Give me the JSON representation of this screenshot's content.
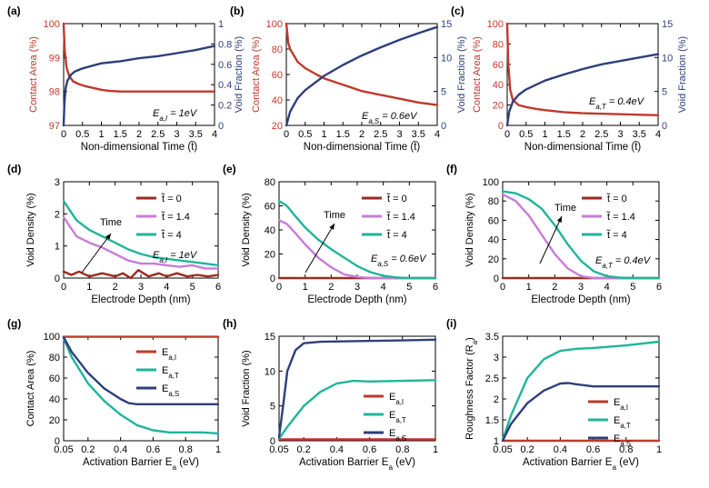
{
  "colors": {
    "red": "#c0392b",
    "navy": "#2e3f7a",
    "teal": "#1fb59a",
    "purple": "#c77dd6",
    "darkred": "#9b2b1f",
    "axis": "#000000"
  },
  "chart_data": [
    {
      "panel": "(a)",
      "type": "line",
      "dual_axis": true,
      "xlabel": "Non-dimensional Time (t̃)",
      "ylabel": "Contact Area (%)",
      "ylabel_right": "Void Fraction (%)",
      "xlim": [
        0,
        4
      ],
      "ylim": [
        97,
        100
      ],
      "ylim_right": [
        0,
        1
      ],
      "xticks": [
        "0",
        "0.5",
        "1",
        "1.5",
        "2",
        "2.5",
        "3",
        "3.5",
        "4"
      ],
      "yticks": [
        "97",
        "98",
        "99",
        "100"
      ],
      "yticks_right": [
        "0",
        "0.2",
        "0.4",
        "0.6",
        "0.8",
        "1"
      ],
      "annotation": "E_{a,I} = 1eV",
      "series": [
        {
          "axis": "left",
          "color": "red",
          "x": [
            0,
            0.03,
            0.08,
            0.15,
            0.25,
            0.4,
            0.6,
            0.8,
            1.0,
            1.2,
            1.5,
            2,
            3,
            4
          ],
          "y": [
            100,
            99.2,
            98.7,
            98.45,
            98.3,
            98.22,
            98.15,
            98.1,
            98.05,
            98.02,
            98.0,
            98.0,
            98.0,
            98.0
          ]
        },
        {
          "axis": "right",
          "color": "navy",
          "x": [
            0,
            0.02,
            0.05,
            0.1,
            0.2,
            0.3,
            0.5,
            0.8,
            1.0,
            1.5,
            2,
            2.5,
            3,
            3.5,
            4
          ],
          "y": [
            0,
            0.2,
            0.36,
            0.44,
            0.5,
            0.53,
            0.56,
            0.59,
            0.61,
            0.63,
            0.66,
            0.68,
            0.71,
            0.74,
            0.78
          ]
        }
      ]
    },
    {
      "panel": "(b)",
      "type": "line",
      "dual_axis": true,
      "xlabel": "Non-dimensional Time (t̃)",
      "ylabel": "Contact Area (%)",
      "ylabel_right": "Void Fraction (%)",
      "xlim": [
        0,
        4
      ],
      "ylim": [
        20,
        100
      ],
      "ylim_right": [
        0,
        15
      ],
      "xticks": [
        "0",
        "0.5",
        "1",
        "1.5",
        "2",
        "2.5",
        "3",
        "3.5",
        "4"
      ],
      "yticks": [
        "20",
        "40",
        "60",
        "80",
        "100"
      ],
      "yticks_right": [
        "0",
        "5",
        "10",
        "15"
      ],
      "annotation": "E_{a,S} = 0.6eV",
      "series": [
        {
          "axis": "left",
          "color": "red",
          "x": [
            0,
            0.05,
            0.1,
            0.2,
            0.3,
            0.5,
            0.8,
            1,
            1.5,
            2,
            2.5,
            3,
            3.5,
            4
          ],
          "y": [
            100,
            85,
            80,
            75,
            70,
            65,
            60,
            57,
            52,
            47,
            44,
            41,
            38,
            36
          ]
        },
        {
          "axis": "right",
          "color": "navy",
          "x": [
            0,
            0.1,
            0.3,
            0.5,
            1,
            1.5,
            2,
            2.5,
            3,
            3.5,
            4
          ],
          "y": [
            0,
            2,
            4,
            5.2,
            7.3,
            8.9,
            10.3,
            11.5,
            12.6,
            13.6,
            14.5
          ]
        }
      ]
    },
    {
      "panel": "(c)",
      "type": "line",
      "dual_axis": true,
      "xlabel": "Non-dimensional Time (t̃)",
      "ylabel": "Contact Area (%)",
      "ylabel_right": "Void Fraction (%)",
      "xlim": [
        0,
        4
      ],
      "ylim": [
        0,
        100
      ],
      "ylim_right": [
        0,
        15
      ],
      "xticks": [
        "0",
        "0.5",
        "1",
        "1.5",
        "2",
        "2.5",
        "3",
        "3.5",
        "4"
      ],
      "yticks": [
        "0",
        "20",
        "40",
        "60",
        "80",
        "100"
      ],
      "yticks_right": [
        "0",
        "5",
        "10",
        "15"
      ],
      "annotation": "E_{a,T} = 0.4eV",
      "series": [
        {
          "axis": "left",
          "color": "red",
          "x": [
            0,
            0.03,
            0.08,
            0.15,
            0.3,
            0.5,
            0.8,
            1,
            1.5,
            2,
            3,
            4
          ],
          "y": [
            100,
            60,
            35,
            25,
            20,
            18,
            16,
            15,
            13,
            12,
            11,
            10
          ]
        },
        {
          "axis": "right",
          "color": "navy",
          "x": [
            0,
            0.05,
            0.15,
            0.3,
            0.5,
            1,
            1.5,
            2,
            2.5,
            3,
            3.5,
            4
          ],
          "y": [
            0,
            2,
            3.5,
            4.5,
            5.3,
            6.6,
            7.5,
            8.3,
            9,
            9.5,
            10,
            10.5
          ]
        }
      ]
    },
    {
      "panel": "(d)",
      "type": "line",
      "xlabel": "Electrode Depth (nm)",
      "ylabel": "Void Density (%)",
      "xlim": [
        0,
        6
      ],
      "ylim": [
        0,
        3
      ],
      "xticks": [
        "0",
        "1",
        "2",
        "3",
        "4",
        "5",
        "6"
      ],
      "yticks": [
        "0",
        "1",
        "2",
        "3"
      ],
      "annotation": "E_{a,I} = 1eV",
      "arrow_label": "Time",
      "series": [
        {
          "name": "t̃ = 0",
          "color": "darkred",
          "x": [
            0,
            0.3,
            0.6,
            1,
            1.5,
            2,
            2.3,
            2.6,
            2.9,
            3.3,
            3.7,
            4,
            4.4,
            4.8,
            5.2,
            5.6,
            6
          ],
          "y": [
            0.2,
            0.1,
            0.2,
            0.05,
            0.15,
            0.05,
            0.15,
            0,
            0.25,
            0.05,
            0.15,
            0.05,
            0.15,
            0.05,
            0.1,
            0.05,
            0.1
          ]
        },
        {
          "name": "t̃ = 1.4",
          "color": "purple",
          "x": [
            0,
            0.5,
            1,
            1.5,
            2,
            2.5,
            3,
            3.5,
            4,
            4.5,
            5,
            5.5,
            6
          ],
          "y": [
            1.9,
            1.3,
            1.1,
            0.95,
            0.75,
            0.55,
            0.45,
            0.45,
            0.4,
            0.35,
            0.4,
            0.3,
            0.3
          ]
        },
        {
          "name": "t̃ = 4",
          "color": "teal",
          "x": [
            0,
            0.5,
            1,
            1.5,
            2,
            2.5,
            3,
            3.5,
            4,
            4.5,
            5,
            5.5,
            6
          ],
          "y": [
            2.4,
            1.8,
            1.5,
            1.3,
            1.1,
            0.9,
            0.75,
            0.65,
            0.6,
            0.55,
            0.5,
            0.45,
            0.4
          ]
        }
      ]
    },
    {
      "panel": "(e)",
      "type": "line",
      "xlabel": "Electrode Depth (nm)",
      "ylabel": "Void Density (%)",
      "xlim": [
        0,
        6
      ],
      "ylim": [
        0,
        80
      ],
      "xticks": [
        "0",
        "1",
        "2",
        "3",
        "4",
        "5",
        "6"
      ],
      "yticks": [
        "0",
        "20",
        "40",
        "60",
        "80"
      ],
      "annotation": "E_{a,S} = 0.6eV",
      "arrow_label": "Time",
      "series": [
        {
          "name": "t̃ = 0",
          "color": "darkred",
          "x": [
            0,
            6
          ],
          "y": [
            0,
            0
          ]
        },
        {
          "name": "t̃ = 1.4",
          "color": "purple",
          "x": [
            0,
            0.3,
            0.6,
            1,
            1.5,
            2,
            2.5,
            3,
            3.5,
            4,
            5,
            6
          ],
          "y": [
            48,
            45,
            38,
            28,
            17,
            9,
            3,
            1,
            0,
            0,
            0,
            0
          ]
        },
        {
          "name": "t̃ = 4",
          "color": "teal",
          "x": [
            0,
            0.3,
            0.6,
            1,
            1.5,
            2,
            2.5,
            3,
            3.5,
            4,
            4.5,
            5,
            6
          ],
          "y": [
            64,
            60,
            52,
            42,
            32,
            24,
            17,
            10,
            5,
            2,
            0.5,
            0,
            0
          ]
        }
      ]
    },
    {
      "panel": "(f)",
      "type": "line",
      "xlabel": "Electrode Depth (nm)",
      "ylabel": "Void Density (%)",
      "xlim": [
        0,
        6
      ],
      "ylim": [
        0,
        100
      ],
      "xticks": [
        "0",
        "1",
        "2",
        "3",
        "4",
        "5",
        "6"
      ],
      "yticks": [
        "0",
        "20",
        "40",
        "60",
        "80",
        "100"
      ],
      "annotation": "E_{a,T} = 0.4eV",
      "arrow_label": "Time",
      "series": [
        {
          "name": "t̃ = 0",
          "color": "darkred",
          "x": [
            0,
            6
          ],
          "y": [
            0,
            0
          ]
        },
        {
          "name": "t̃ = 1.4",
          "color": "purple",
          "x": [
            0,
            0.5,
            1,
            1.5,
            2,
            2.5,
            3,
            3.5,
            4,
            6
          ],
          "y": [
            87,
            80,
            65,
            45,
            25,
            10,
            2,
            0,
            0,
            0
          ]
        },
        {
          "name": "t̃ = 4",
          "color": "teal",
          "x": [
            0,
            0.5,
            1,
            1.5,
            2,
            2.5,
            3,
            3.5,
            4,
            4.5,
            5,
            6
          ],
          "y": [
            90,
            88,
            82,
            72,
            55,
            35,
            18,
            7,
            2,
            0.5,
            0,
            0
          ]
        }
      ]
    },
    {
      "panel": "(g)",
      "type": "line",
      "xlabel": "Activation Barrier E_a (eV)",
      "ylabel": "Contact Area (%)",
      "xlim": [
        0.05,
        1
      ],
      "ylim": [
        0,
        100
      ],
      "xticks": [
        "0.05",
        "0.2",
        "0.4",
        "0.6",
        "0.8",
        "1"
      ],
      "yticks": [
        "0",
        "20",
        "40",
        "60",
        "80",
        "100"
      ],
      "series": [
        {
          "name": "E_{a,I}",
          "color": "red",
          "x": [
            0.05,
            1
          ],
          "y": [
            99.5,
            99.5
          ]
        },
        {
          "name": "E_{a,T}",
          "color": "teal",
          "x": [
            0.05,
            0.1,
            0.2,
            0.3,
            0.4,
            0.5,
            0.6,
            0.7,
            0.8,
            0.9,
            1
          ],
          "y": [
            98,
            80,
            55,
            38,
            25,
            15,
            10,
            8,
            8,
            8,
            7
          ]
        },
        {
          "name": "E_{a,S}",
          "color": "navy",
          "x": [
            0.05,
            0.1,
            0.2,
            0.3,
            0.4,
            0.45,
            0.5,
            0.6,
            0.7,
            0.8,
            1
          ],
          "y": [
            99,
            85,
            65,
            50,
            40,
            36,
            35,
            35,
            35,
            35,
            35
          ]
        }
      ]
    },
    {
      "panel": "(h)",
      "type": "line",
      "xlabel": "Activation Barrier E_a (eV)",
      "ylabel": "Void Fraction (%)",
      "xlim": [
        0.05,
        1
      ],
      "ylim": [
        0,
        15
      ],
      "xticks": [
        "0.05",
        "0.2",
        "0.4",
        "0.6",
        "0.8",
        "1"
      ],
      "yticks": [
        "0",
        "5",
        "10",
        "15"
      ],
      "series": [
        {
          "name": "E_{a,I}",
          "color": "red",
          "x": [
            0.05,
            1
          ],
          "y": [
            0.2,
            0.2
          ]
        },
        {
          "name": "E_{a,T}",
          "color": "teal",
          "x": [
            0.05,
            0.1,
            0.2,
            0.3,
            0.4,
            0.5,
            0.6,
            0.8,
            1
          ],
          "y": [
            0.3,
            2,
            5,
            7,
            8.2,
            8.6,
            8.5,
            8.6,
            8.7
          ]
        },
        {
          "name": "E_{a,S}",
          "color": "navy",
          "x": [
            0.05,
            0.08,
            0.1,
            0.15,
            0.2,
            0.3,
            0.5,
            0.8,
            1
          ],
          "y": [
            0.5,
            6,
            10,
            13,
            14,
            14.2,
            14.3,
            14.4,
            14.5
          ]
        }
      ]
    },
    {
      "panel": "(i)",
      "type": "line",
      "xlabel": "Activation Barrier E_a (eV)",
      "ylabel": "Roughness Factor (R_a)",
      "xlim": [
        0.05,
        1
      ],
      "ylim": [
        1,
        3.5
      ],
      "xticks": [
        "0.05",
        "0.2",
        "0.4",
        "0.6",
        "0.8",
        "1"
      ],
      "yticks": [
        "1",
        "1.5",
        "2",
        "2.5",
        "3",
        "3.5"
      ],
      "series": [
        {
          "name": "E_{a,I}",
          "color": "red",
          "x": [
            0.05,
            1
          ],
          "y": [
            1.0,
            1.0
          ]
        },
        {
          "name": "E_{a,T}",
          "color": "teal",
          "x": [
            0.05,
            0.1,
            0.2,
            0.3,
            0.4,
            0.5,
            0.6,
            0.8,
            1
          ],
          "y": [
            1.02,
            1.6,
            2.5,
            2.95,
            3.15,
            3.2,
            3.22,
            3.28,
            3.37
          ]
        },
        {
          "name": "E_{a,S}",
          "color": "navy",
          "x": [
            0.05,
            0.1,
            0.2,
            0.3,
            0.4,
            0.45,
            0.5,
            0.6,
            0.8,
            1
          ],
          "y": [
            1.0,
            1.4,
            1.9,
            2.2,
            2.37,
            2.38,
            2.35,
            2.3,
            2.3,
            2.3
          ]
        }
      ]
    }
  ]
}
